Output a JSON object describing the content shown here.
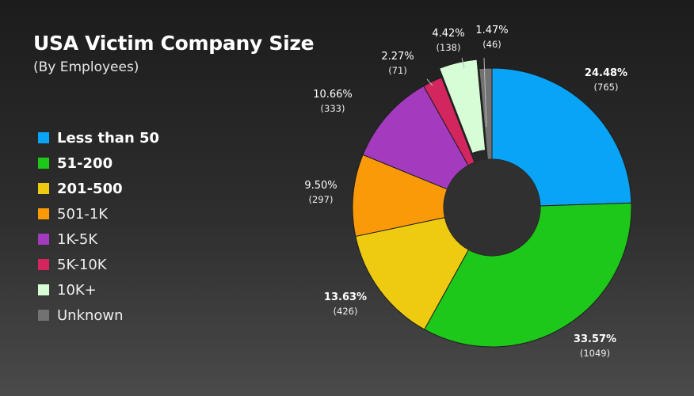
{
  "header": {
    "title": "USA Victim Company Size",
    "subtitle": "(By Employees)"
  },
  "chart_data": {
    "type": "pie",
    "variant": "donut",
    "title": "USA Victim Company Size",
    "subtitle": "(By Employees)",
    "legend_position": "left",
    "categories": [
      "Less than 50",
      "51-200",
      "201-500",
      "501-1K",
      "1K-5K",
      "5K-10K",
      "10K+",
      "Unknown"
    ],
    "percentages": [
      24.48,
      33.57,
      13.63,
      9.5,
      10.66,
      2.27,
      4.42,
      1.47
    ],
    "percent_labels": [
      "24.48%",
      "33.57%",
      "13.63%",
      "9.50%",
      "10.66%",
      "2.27%",
      "4.42%",
      "1.47%"
    ],
    "count_labels": [
      "(765)",
      "(1049)",
      "(426)",
      "(297)",
      "(333)",
      "(71)",
      "(138)",
      "(46)"
    ],
    "values": [
      765,
      1049,
      426,
      297,
      333,
      71,
      138,
      46
    ],
    "colors": [
      "#0aa4f6",
      "#1ec81a",
      "#eecb10",
      "#fb9a08",
      "#a43bbf",
      "#d3265f",
      "#d6fdd6",
      "#727272"
    ],
    "bold_labels": [
      true,
      true,
      true,
      false,
      false,
      false,
      false,
      false
    ]
  }
}
